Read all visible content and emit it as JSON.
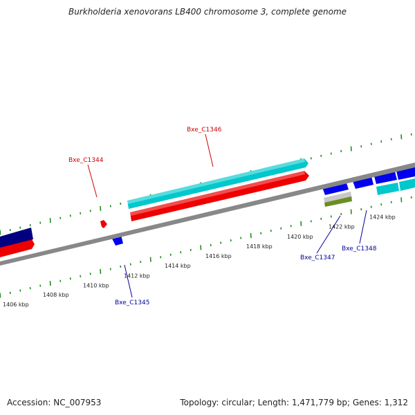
{
  "title": "Burkholderia xenovorans LB400 chromosome 3, complete genome",
  "footer": {
    "accession": "Accession: NC_007953",
    "summary": "Topology: circular; Length: 1,471,779 bp; Genes: 1,312"
  },
  "colors": {
    "backbone": "#888888",
    "tick": "#1e8c1e",
    "forward_cds": "#ee0000",
    "forward_cds2": "#00c8cc",
    "reverse_cds": "#0000ee",
    "reverse_dark": "#000080",
    "rna_gray": "#c8c8c8",
    "rna_green": "#6b8e23",
    "label_fwd": "#cc0000",
    "label_rev": "#000099"
  },
  "scale_labels": [
    "1406 kbp",
    "1408 kbp",
    "1410 kbp",
    "1412 kbp",
    "1414 kbp",
    "1416 kbp",
    "1418 kbp",
    "1420 kbp",
    "1422 kbp",
    "1424 kbp"
  ],
  "gene_labels": [
    {
      "text": "Bxe_C1344",
      "strand": "forward"
    },
    {
      "text": "Bxe_C1346",
      "strand": "forward"
    },
    {
      "text": "Bxe_C1345",
      "strand": "reverse"
    },
    {
      "text": "Bxe_C1347",
      "strand": "reverse"
    },
    {
      "text": "Bxe_C1348",
      "strand": "reverse"
    }
  ]
}
